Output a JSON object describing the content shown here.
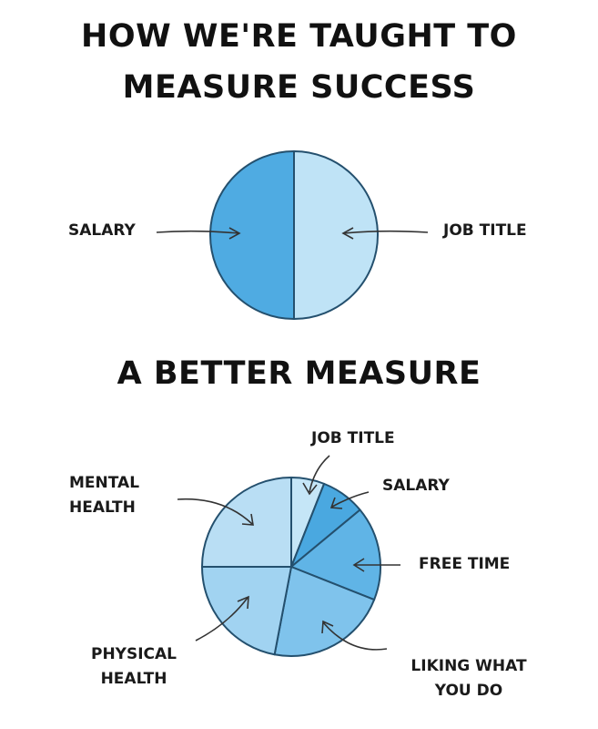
{
  "chart_data": [
    {
      "type": "pie",
      "title": "HOW WE'RE TAUGHT TO MEASURE SUCCESS",
      "title_lines": [
        "HOW WE'RE TAUGHT TO",
        "MEASURE SUCCESS"
      ],
      "slices": [
        {
          "label": "JOB TITLE",
          "value": 50,
          "color": "#bfe3f6"
        },
        {
          "label": "SALARY",
          "value": 50,
          "color": "#4fabe2"
        }
      ]
    },
    {
      "type": "pie",
      "title": "A BETTER MEASURE",
      "slices": [
        {
          "label": "JOB TITLE",
          "value": 6,
          "color": "#c5e6f7"
        },
        {
          "label": "SALARY",
          "value": 8,
          "color": "#4aa8e0"
        },
        {
          "label": "FREE TIME",
          "value": 17,
          "color": "#60b4e6"
        },
        {
          "label": "LIKING WHAT YOU DO",
          "value": 22,
          "color": "#7fc3ec"
        },
        {
          "label": "PHYSICAL HEALTH",
          "value": 22,
          "color": "#a1d3f1"
        },
        {
          "label": "MENTAL HEALTH",
          "value": 25,
          "color": "#b9def4"
        }
      ]
    }
  ]
}
